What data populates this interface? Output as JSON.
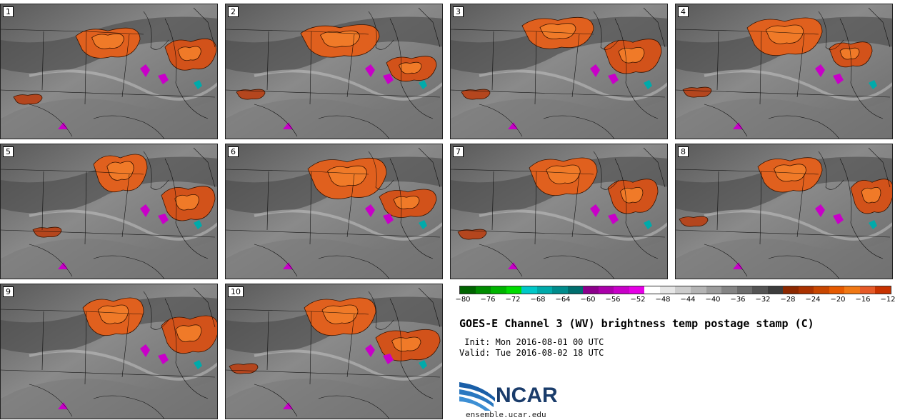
{
  "panels": [
    {
      "label": "1"
    },
    {
      "label": "2"
    },
    {
      "label": "3"
    },
    {
      "label": "4"
    },
    {
      "label": "5"
    },
    {
      "label": "6"
    },
    {
      "label": "7"
    },
    {
      "label": "8"
    },
    {
      "label": "9"
    },
    {
      "label": "10"
    }
  ],
  "colorbar": {
    "colors": [
      "#006400",
      "#008c00",
      "#00b400",
      "#00dc00",
      "#00c8c8",
      "#00aaaa",
      "#008c8c",
      "#006e6e",
      "#8c008c",
      "#aa00aa",
      "#c800c8",
      "#e600e6",
      "#ffffff",
      "#e6e6e6",
      "#cccccc",
      "#b4b4b4",
      "#9c9c9c",
      "#848484",
      "#6c6c6c",
      "#545454",
      "#3c3c3c",
      "#8c2800",
      "#aa3200",
      "#c84600",
      "#e65a00",
      "#f07814",
      "#e65a28",
      "#c83200"
    ],
    "ticks": [
      "−80",
      "−76",
      "−72",
      "−68",
      "−64",
      "−60",
      "−56",
      "−52",
      "−48",
      "−44",
      "−40",
      "−36",
      "−32",
      "−28",
      "−24",
      "−20",
      "−16",
      "−12"
    ]
  },
  "title": "GOES-E Channel 3 (WV) brightness temp postage stamp (C)",
  "init": " Init: Mon 2016-08-01 00 UTC",
  "valid": "Valid: Tue 2016-08-02 18 UTC",
  "logo_text": "NCAR",
  "site": "ensemble.ucar.edu"
}
